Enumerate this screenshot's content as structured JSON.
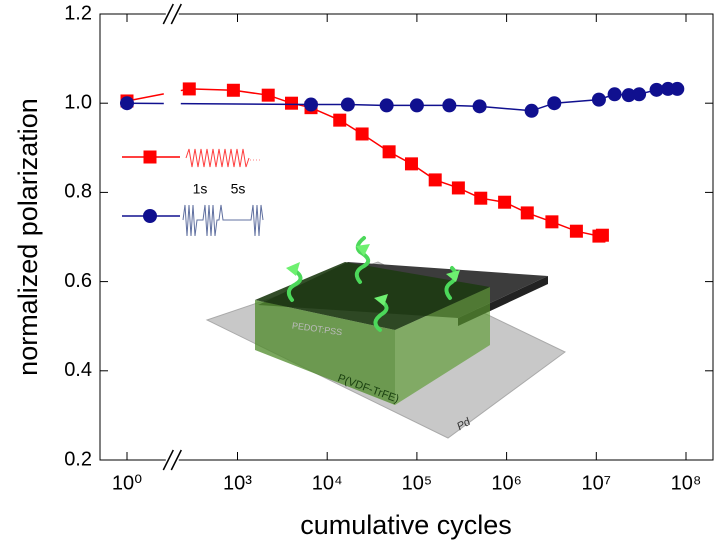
{
  "chart_data": {
    "type": "line",
    "xlabel": "cumulative cycles",
    "ylabel": "normalized polarization",
    "xscale": "log",
    "x_axis_break": [
      3,
      200
    ],
    "xlim": [
      0.5,
      200000000
    ],
    "xticks": [
      {
        "value": 1,
        "label": "10⁰"
      },
      {
        "value": 1000,
        "label": "10³"
      },
      {
        "value": 10000,
        "label": "10⁴"
      },
      {
        "value": 100000,
        "label": "10⁵"
      },
      {
        "value": 1000000,
        "label": "10⁶"
      },
      {
        "value": 10000000,
        "label": "10⁷"
      },
      {
        "value": 100000000,
        "label": "10⁸"
      }
    ],
    "ylim": [
      0.2,
      1.2
    ],
    "yticks": [
      0.2,
      0.4,
      0.6,
      0.8,
      {
        "value": 1.0,
        "label": "1.0"
      },
      1.2
    ],
    "legend_texts": [
      "1s",
      "5s"
    ],
    "inset_labels": [
      "PEDOT:PSS",
      "P(VDF-TrFE)",
      "Pd"
    ],
    "series": [
      {
        "color": "#ff0000",
        "marker": "square",
        "x": [
          1,
          290,
          900,
          2200,
          4000,
          6600,
          13800,
          24500,
          49000,
          87000,
          160000,
          290000,
          515000,
          950000,
          1700000,
          3200000,
          6000000,
          10700000,
          11700000
        ],
        "values": [
          1.005,
          1.032,
          1.029,
          1.018,
          1.0,
          0.99,
          0.962,
          0.931,
          0.891,
          0.864,
          0.828,
          0.81,
          0.787,
          0.778,
          0.754,
          0.734,
          0.713,
          0.702,
          0.704
        ]
      },
      {
        "color": "#10108f",
        "marker": "circle",
        "x": [
          1,
          6600,
          17000,
          46000,
          100000,
          230000,
          500000,
          1900000,
          3400000,
          10700000,
          16000000,
          23000000,
          30000000,
          47000000,
          63000000,
          80000000
        ],
        "values": [
          1.0,
          0.997,
          0.997,
          0.995,
          0.995,
          0.995,
          0.993,
          0.983,
          1.0,
          1.008,
          1.02,
          1.018,
          1.02,
          1.03,
          1.032,
          1.032
        ]
      }
    ]
  }
}
